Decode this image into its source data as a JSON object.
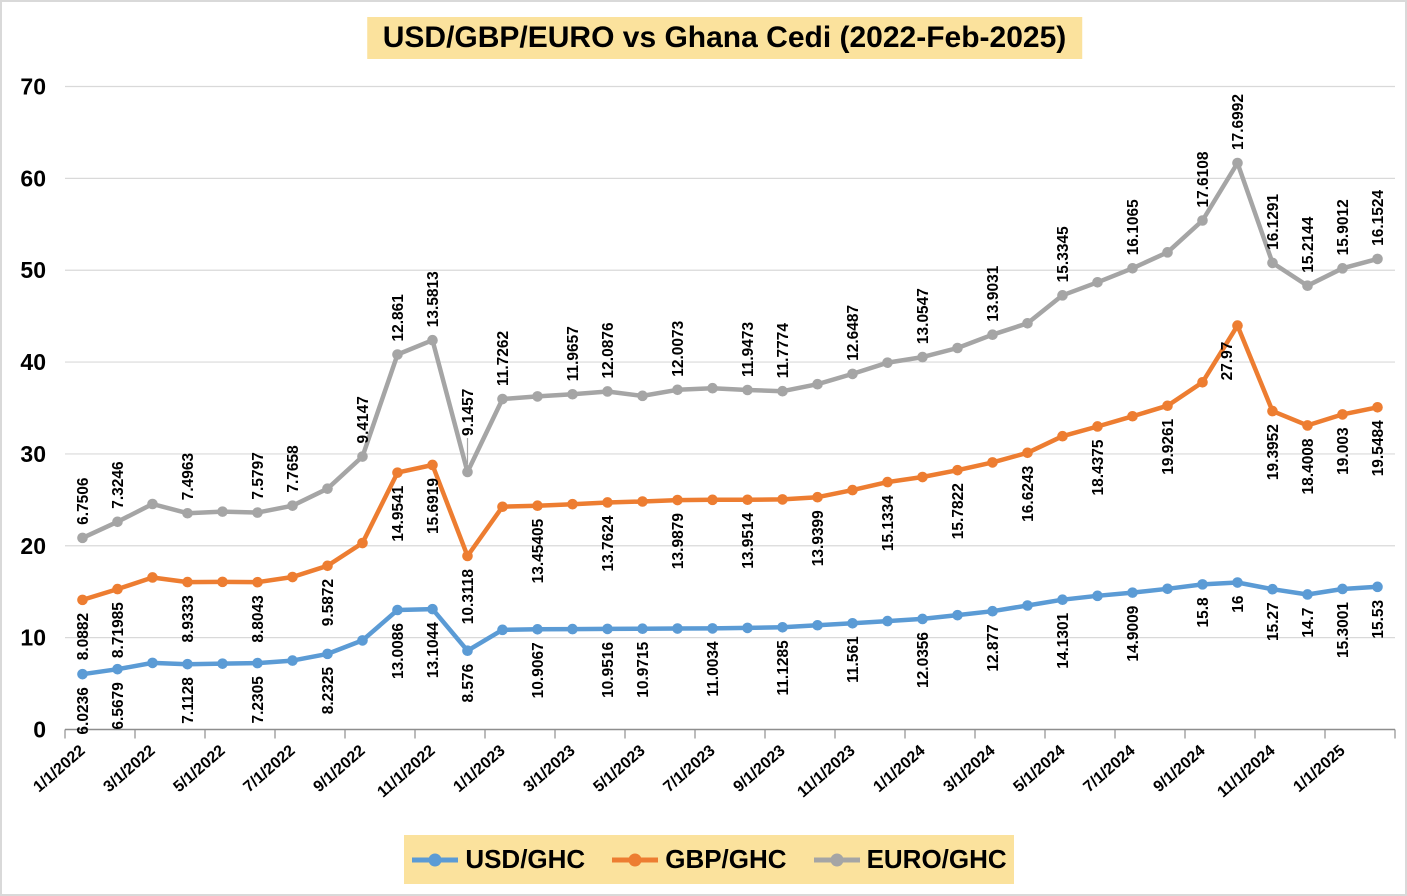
{
  "title": {
    "text": "USD/GBP/EURO vs Ghana Cedi (2022-Feb-2025)",
    "bg": "#FBE29D"
  },
  "legend": {
    "bg": "#FBE29D",
    "items": [
      {
        "label": "USD/GHC",
        "color": "#5B9BD5"
      },
      {
        "label": "GBP/GHC",
        "color": "#ED7D31"
      },
      {
        "label": "EURO/GHC",
        "color": "#A5A5A5"
      }
    ]
  },
  "colors": {
    "grid": "#D9D9D9",
    "axis": "#8E8E8E",
    "label_text": "#000000",
    "leader": "#A6A6A6"
  },
  "chart_data": {
    "type": "line",
    "stacked": true,
    "title": "USD/GBP/EURO vs Ghana Cedi (2022-Feb-2025)",
    "xlabel": "",
    "ylabel": "",
    "ylim": [
      0,
      70
    ],
    "yticks": [
      0,
      10,
      20,
      30,
      40,
      50,
      60,
      70
    ],
    "grid": true,
    "legend_position": "bottom",
    "x": [
      "1/1/2022",
      "2/1/2022",
      "3/1/2022",
      "4/1/2022",
      "5/1/2022",
      "6/1/2022",
      "7/1/2022",
      "8/1/2022",
      "9/1/2022",
      "10/1/2022",
      "11/1/2022",
      "12/1/2022",
      "1/1/2023",
      "2/1/2023",
      "3/1/2023",
      "4/1/2023",
      "5/1/2023",
      "6/1/2023",
      "7/1/2023",
      "8/1/2023",
      "9/1/2023",
      "10/1/2023",
      "11/1/2023",
      "12/1/2023",
      "1/1/2024",
      "2/1/2024",
      "3/1/2024",
      "4/1/2024",
      "5/1/2024",
      "6/1/2024",
      "7/1/2024",
      "8/1/2024",
      "9/1/2024",
      "10/1/2024",
      "11/1/2024",
      "12/1/2024",
      "1/1/2025",
      "2/1/2025"
    ],
    "x_tick_labels": [
      "1/1/2022",
      "3/1/2022",
      "5/1/2022",
      "7/1/2022",
      "9/1/2022",
      "11/1/2022",
      "1/1/2023",
      "3/1/2023",
      "5/1/2023",
      "7/1/2023",
      "9/1/2023",
      "11/1/2023",
      "1/1/2024",
      "3/1/2024",
      "5/1/2024",
      "7/1/2024",
      "9/1/2024",
      "11/1/2024",
      "1/1/2025"
    ],
    "series": [
      {
        "name": "USD/GHC",
        "color": "#5B9BD5",
        "label_side": "below",
        "values": [
          6.0236,
          6.5679,
          7.25,
          7.1128,
          7.17,
          7.2305,
          7.5,
          8.2325,
          9.7,
          13.0086,
          13.1044,
          8.576,
          10.85,
          10.9067,
          10.93,
          10.9516,
          10.9715,
          10.99,
          11.0034,
          11.06,
          11.1285,
          11.35,
          11.561,
          11.8,
          12.0356,
          12.45,
          12.877,
          13.5,
          14.1301,
          14.55,
          14.9009,
          15.32,
          15.8,
          16,
          15.27,
          14.7,
          15.3001,
          15.53
        ],
        "labels": [
          {
            "i": 0,
            "t": "6.0236"
          },
          {
            "i": 1,
            "t": "6.5679"
          },
          {
            "i": 3,
            "t": "7.1128"
          },
          {
            "i": 5,
            "t": "7.2305"
          },
          {
            "i": 7,
            "t": "8.2325"
          },
          {
            "i": 9,
            "t": "13.0086"
          },
          {
            "i": 10,
            "t": "13.1044"
          },
          {
            "i": 11,
            "t": "8.576"
          },
          {
            "i": 13,
            "t": "10.9067"
          },
          {
            "i": 15,
            "t": "10.9516"
          },
          {
            "i": 16,
            "t": "10.9715"
          },
          {
            "i": 18,
            "t": "11.0034"
          },
          {
            "i": 20,
            "t": "11.1285"
          },
          {
            "i": 22,
            "t": "11.561"
          },
          {
            "i": 24,
            "t": "12.0356"
          },
          {
            "i": 26,
            "t": "12.877"
          },
          {
            "i": 28,
            "t": "14.1301"
          },
          {
            "i": 30,
            "t": "14.9009"
          },
          {
            "i": 32,
            "t": "15.8"
          },
          {
            "i": 33,
            "t": "16"
          },
          {
            "i": 34,
            "t": "15.27"
          },
          {
            "i": 35,
            "t": "14.7"
          },
          {
            "i": 36,
            "t": "15.3001"
          },
          {
            "i": 37,
            "t": "15.53"
          }
        ]
      },
      {
        "name": "GBP/GHC",
        "color": "#ED7D31",
        "label_side": "below",
        "values": [
          8.0882,
          8.71985,
          9.3,
          8.9333,
          8.9,
          8.8043,
          9.1,
          9.5872,
          10.6,
          14.9541,
          15.6919,
          10.3118,
          13.4,
          13.45405,
          13.6,
          13.7624,
          13.85,
          13.9879,
          14.0,
          13.9514,
          13.92,
          13.9399,
          14.5,
          15.1334,
          15.45,
          15.7822,
          16.2,
          16.6243,
          17.8,
          18.4375,
          19.2,
          19.9261,
          22.0,
          27.97,
          19.3952,
          18.4008,
          19.003,
          19.5484
        ],
        "labels": [
          {
            "i": 0,
            "t": "8.0882"
          },
          {
            "i": 1,
            "t": "8.71985"
          },
          {
            "i": 3,
            "t": "8.9333"
          },
          {
            "i": 5,
            "t": "8.8043"
          },
          {
            "i": 7,
            "t": "9.5872"
          },
          {
            "i": 9,
            "t": "14.9541"
          },
          {
            "i": 10,
            "t": "15.6919"
          },
          {
            "i": 11,
            "t": "10.3118"
          },
          {
            "i": 13,
            "t": "13.45405"
          },
          {
            "i": 15,
            "t": "13.7624"
          },
          {
            "i": 17,
            "t": "13.9879"
          },
          {
            "i": 19,
            "t": "13.9514"
          },
          {
            "i": 21,
            "t": "13.9399"
          },
          {
            "i": 23,
            "t": "15.1334"
          },
          {
            "i": 25,
            "t": "15.7822"
          },
          {
            "i": 27,
            "t": "16.6243"
          },
          {
            "i": 29,
            "t": "18.4375"
          },
          {
            "i": 31,
            "t": "19.9261"
          },
          {
            "i": 33,
            "t": "27.97",
            "dx": -11,
            "dy": 3
          },
          {
            "i": 34,
            "t": "19.3952"
          },
          {
            "i": 35,
            "t": "18.4008"
          },
          {
            "i": 36,
            "t": "19.003"
          },
          {
            "i": 37,
            "t": "19.5484"
          }
        ]
      },
      {
        "name": "EURO/GHC",
        "color": "#A5A5A5",
        "label_side": "above",
        "values": [
          6.7506,
          7.3246,
          8.0,
          7.4963,
          7.65,
          7.5797,
          7.7658,
          8.4,
          9.4147,
          12.861,
          13.5813,
          9.1457,
          11.7262,
          11.9,
          11.9657,
          12.0876,
          11.5,
          12.0073,
          12.15,
          11.9473,
          11.7774,
          12.3,
          12.6487,
          13.0,
          13.0547,
          13.3,
          13.9031,
          14.1,
          15.3345,
          15.7,
          16.1065,
          16.7,
          17.6108,
          17.6992,
          16.1291,
          15.2144,
          15.9012,
          16.1524
        ],
        "labels": [
          {
            "i": 0,
            "t": "6.7506"
          },
          {
            "i": 1,
            "t": "7.3246"
          },
          {
            "i": 3,
            "t": "7.4963"
          },
          {
            "i": 5,
            "t": "7.5797"
          },
          {
            "i": 6,
            "t": "7.7658"
          },
          {
            "i": 8,
            "t": "9.4147"
          },
          {
            "i": 9,
            "t": "12.861"
          },
          {
            "i": 10,
            "t": "13.5813"
          },
          {
            "i": 11,
            "t": "9.1457",
            "dy": 23,
            "leader": true
          },
          {
            "i": 12,
            "t": "11.7262"
          },
          {
            "i": 14,
            "t": "11.9657"
          },
          {
            "i": 15,
            "t": "12.0876"
          },
          {
            "i": 17,
            "t": "12.0073"
          },
          {
            "i": 19,
            "t": "11.9473"
          },
          {
            "i": 20,
            "t": "11.7774"
          },
          {
            "i": 22,
            "t": "12.6487"
          },
          {
            "i": 24,
            "t": "13.0547"
          },
          {
            "i": 26,
            "t": "13.9031"
          },
          {
            "i": 28,
            "t": "15.3345"
          },
          {
            "i": 30,
            "t": "16.1065"
          },
          {
            "i": 32,
            "t": "17.6108"
          },
          {
            "i": 33,
            "t": "17.6992"
          },
          {
            "i": 34,
            "t": "16.1291"
          },
          {
            "i": 35,
            "t": "15.2144"
          },
          {
            "i": 36,
            "t": "15.9012"
          },
          {
            "i": 37,
            "t": "16.1524"
          }
        ]
      }
    ]
  }
}
